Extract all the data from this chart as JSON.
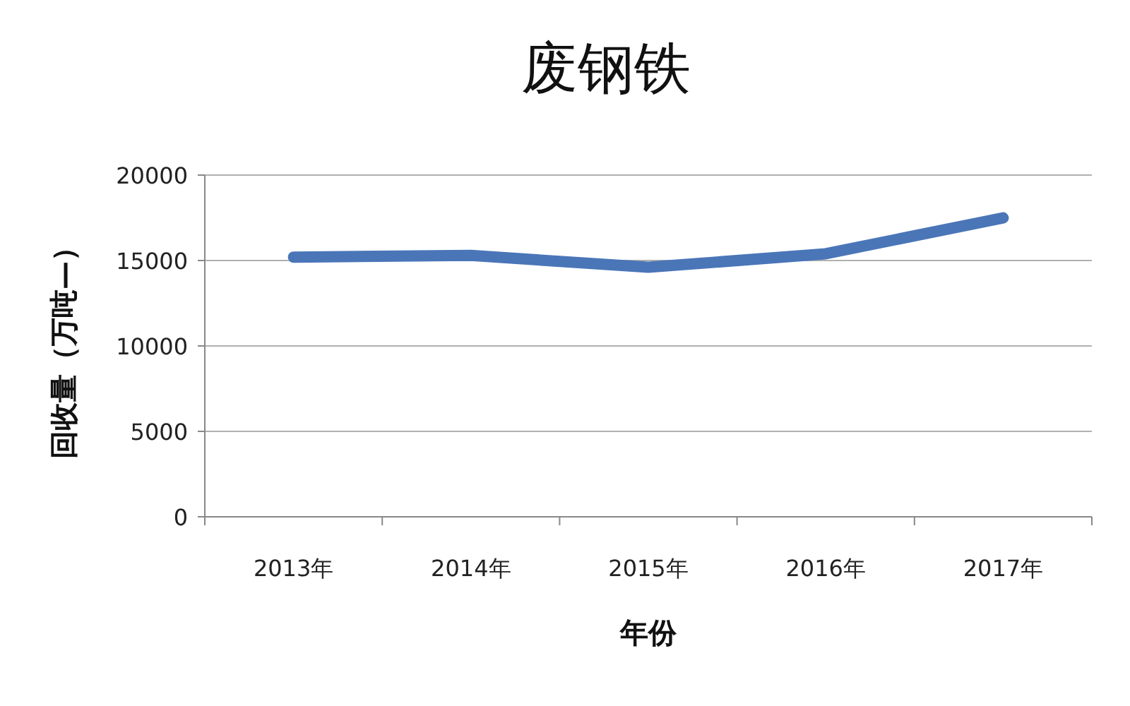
{
  "chart_data": {
    "type": "line",
    "title": "废钢铁",
    "xlabel": "年份",
    "ylabel": "回收量（万吨—）",
    "categories": [
      "2013年",
      "2014年",
      "2015年",
      "2016年",
      "2017年"
    ],
    "series": [
      {
        "color": "#4a76b8",
        "values": [
          15200,
          15300,
          14600,
          15400,
          17500
        ]
      }
    ],
    "ylim": [
      0,
      20000
    ],
    "yticks": [
      0,
      5000,
      10000,
      15000,
      20000
    ],
    "grid": "y",
    "marker": "none",
    "line_style": "solid"
  }
}
